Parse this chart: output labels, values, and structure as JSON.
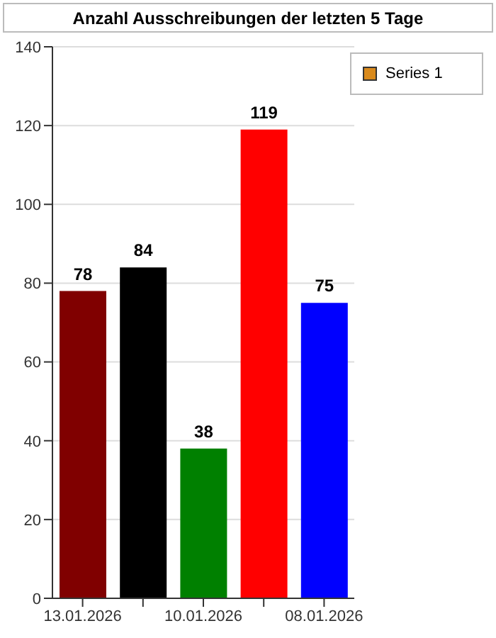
{
  "chart_data": {
    "type": "bar",
    "title": "Anzahl Ausschreibungen der letzten 5 Tage",
    "categories": [
      "13.01.2026",
      null,
      "10.01.2026",
      null,
      "08.01.2026"
    ],
    "series": [
      {
        "name": "Series 1",
        "color": "#d98a1c",
        "colors": [
          "#800000",
          "#000000",
          "#008000",
          "#ff0000",
          "#0000ff"
        ],
        "values": [
          78,
          84,
          38,
          119,
          75
        ]
      }
    ],
    "ylim": [
      0,
      140
    ],
    "yticks": [
      0,
      20,
      40,
      60,
      80,
      100,
      120,
      140
    ],
    "grid": "y",
    "legend": "top right",
    "data_labels": true
  }
}
